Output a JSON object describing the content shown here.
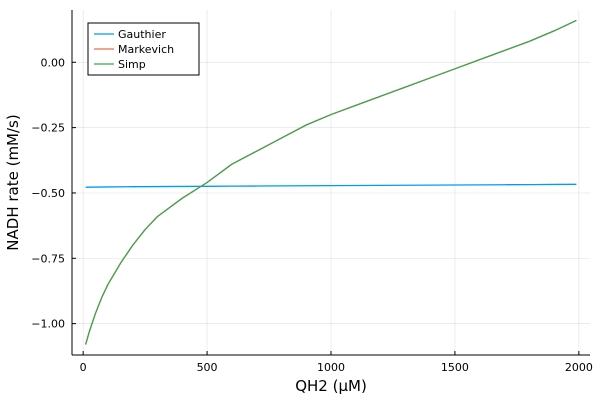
{
  "chart_data": {
    "type": "line",
    "xlabel": "QH2 (μM)",
    "ylabel": "NADH rate (mM/s)",
    "xlim": [
      -45,
      2045
    ],
    "ylim": [
      -1.12,
      0.2
    ],
    "xticks": [
      0,
      500,
      1000,
      1500,
      2000
    ],
    "xtick_labels": [
      "0",
      "500",
      "1000",
      "1500",
      "2000"
    ],
    "yticks": [
      -1.0,
      -0.75,
      -0.5,
      -0.25,
      0.0
    ],
    "ytick_labels": [
      "−1.00",
      "−0.75",
      "−0.50",
      "−0.25",
      "0.00"
    ],
    "grid": true,
    "legend_position": "top-left",
    "series": [
      {
        "name": "Gauthier",
        "color": "#009AFA",
        "x": [
          10,
          100,
          200,
          300,
          400,
          500,
          600,
          700,
          800,
          900,
          1000,
          1100,
          1200,
          1300,
          1400,
          1500,
          1600,
          1700,
          1800,
          1900,
          1990
        ],
        "y": [
          -0.478,
          -0.477,
          -0.476,
          -0.4755,
          -0.475,
          -0.4745,
          -0.474,
          -0.4735,
          -0.473,
          -0.4725,
          -0.472,
          -0.4715,
          -0.471,
          -0.4705,
          -0.47,
          -0.4695,
          -0.469,
          -0.4685,
          -0.468,
          -0.4675,
          -0.467
        ]
      },
      {
        "name": "Markevich",
        "color": "#E36F47",
        "x": [
          10,
          25,
          50,
          75,
          100,
          150,
          200,
          250,
          300,
          400,
          500,
          600,
          700,
          800,
          900,
          1000,
          1100,
          1200,
          1300,
          1400,
          1500,
          1600,
          1700,
          1800,
          1900,
          1990
        ],
        "y": [
          -1.08,
          -1.03,
          -0.96,
          -0.9,
          -0.85,
          -0.77,
          -0.7,
          -0.64,
          -0.59,
          -0.52,
          -0.46,
          -0.39,
          -0.34,
          -0.29,
          -0.24,
          -0.2,
          -0.165,
          -0.13,
          -0.095,
          -0.06,
          -0.025,
          0.01,
          0.045,
          0.08,
          0.12,
          0.16
        ]
      },
      {
        "name": "Simp",
        "color": "#3EA44E",
        "x": [
          10,
          25,
          50,
          75,
          100,
          150,
          200,
          250,
          300,
          400,
          500,
          600,
          700,
          800,
          900,
          1000,
          1100,
          1200,
          1300,
          1400,
          1500,
          1600,
          1700,
          1800,
          1900,
          1990
        ],
        "y": [
          -1.08,
          -1.03,
          -0.96,
          -0.9,
          -0.85,
          -0.77,
          -0.7,
          -0.64,
          -0.59,
          -0.52,
          -0.46,
          -0.39,
          -0.34,
          -0.29,
          -0.24,
          -0.2,
          -0.165,
          -0.13,
          -0.095,
          -0.06,
          -0.025,
          0.01,
          0.045,
          0.08,
          0.12,
          0.16
        ]
      }
    ]
  }
}
